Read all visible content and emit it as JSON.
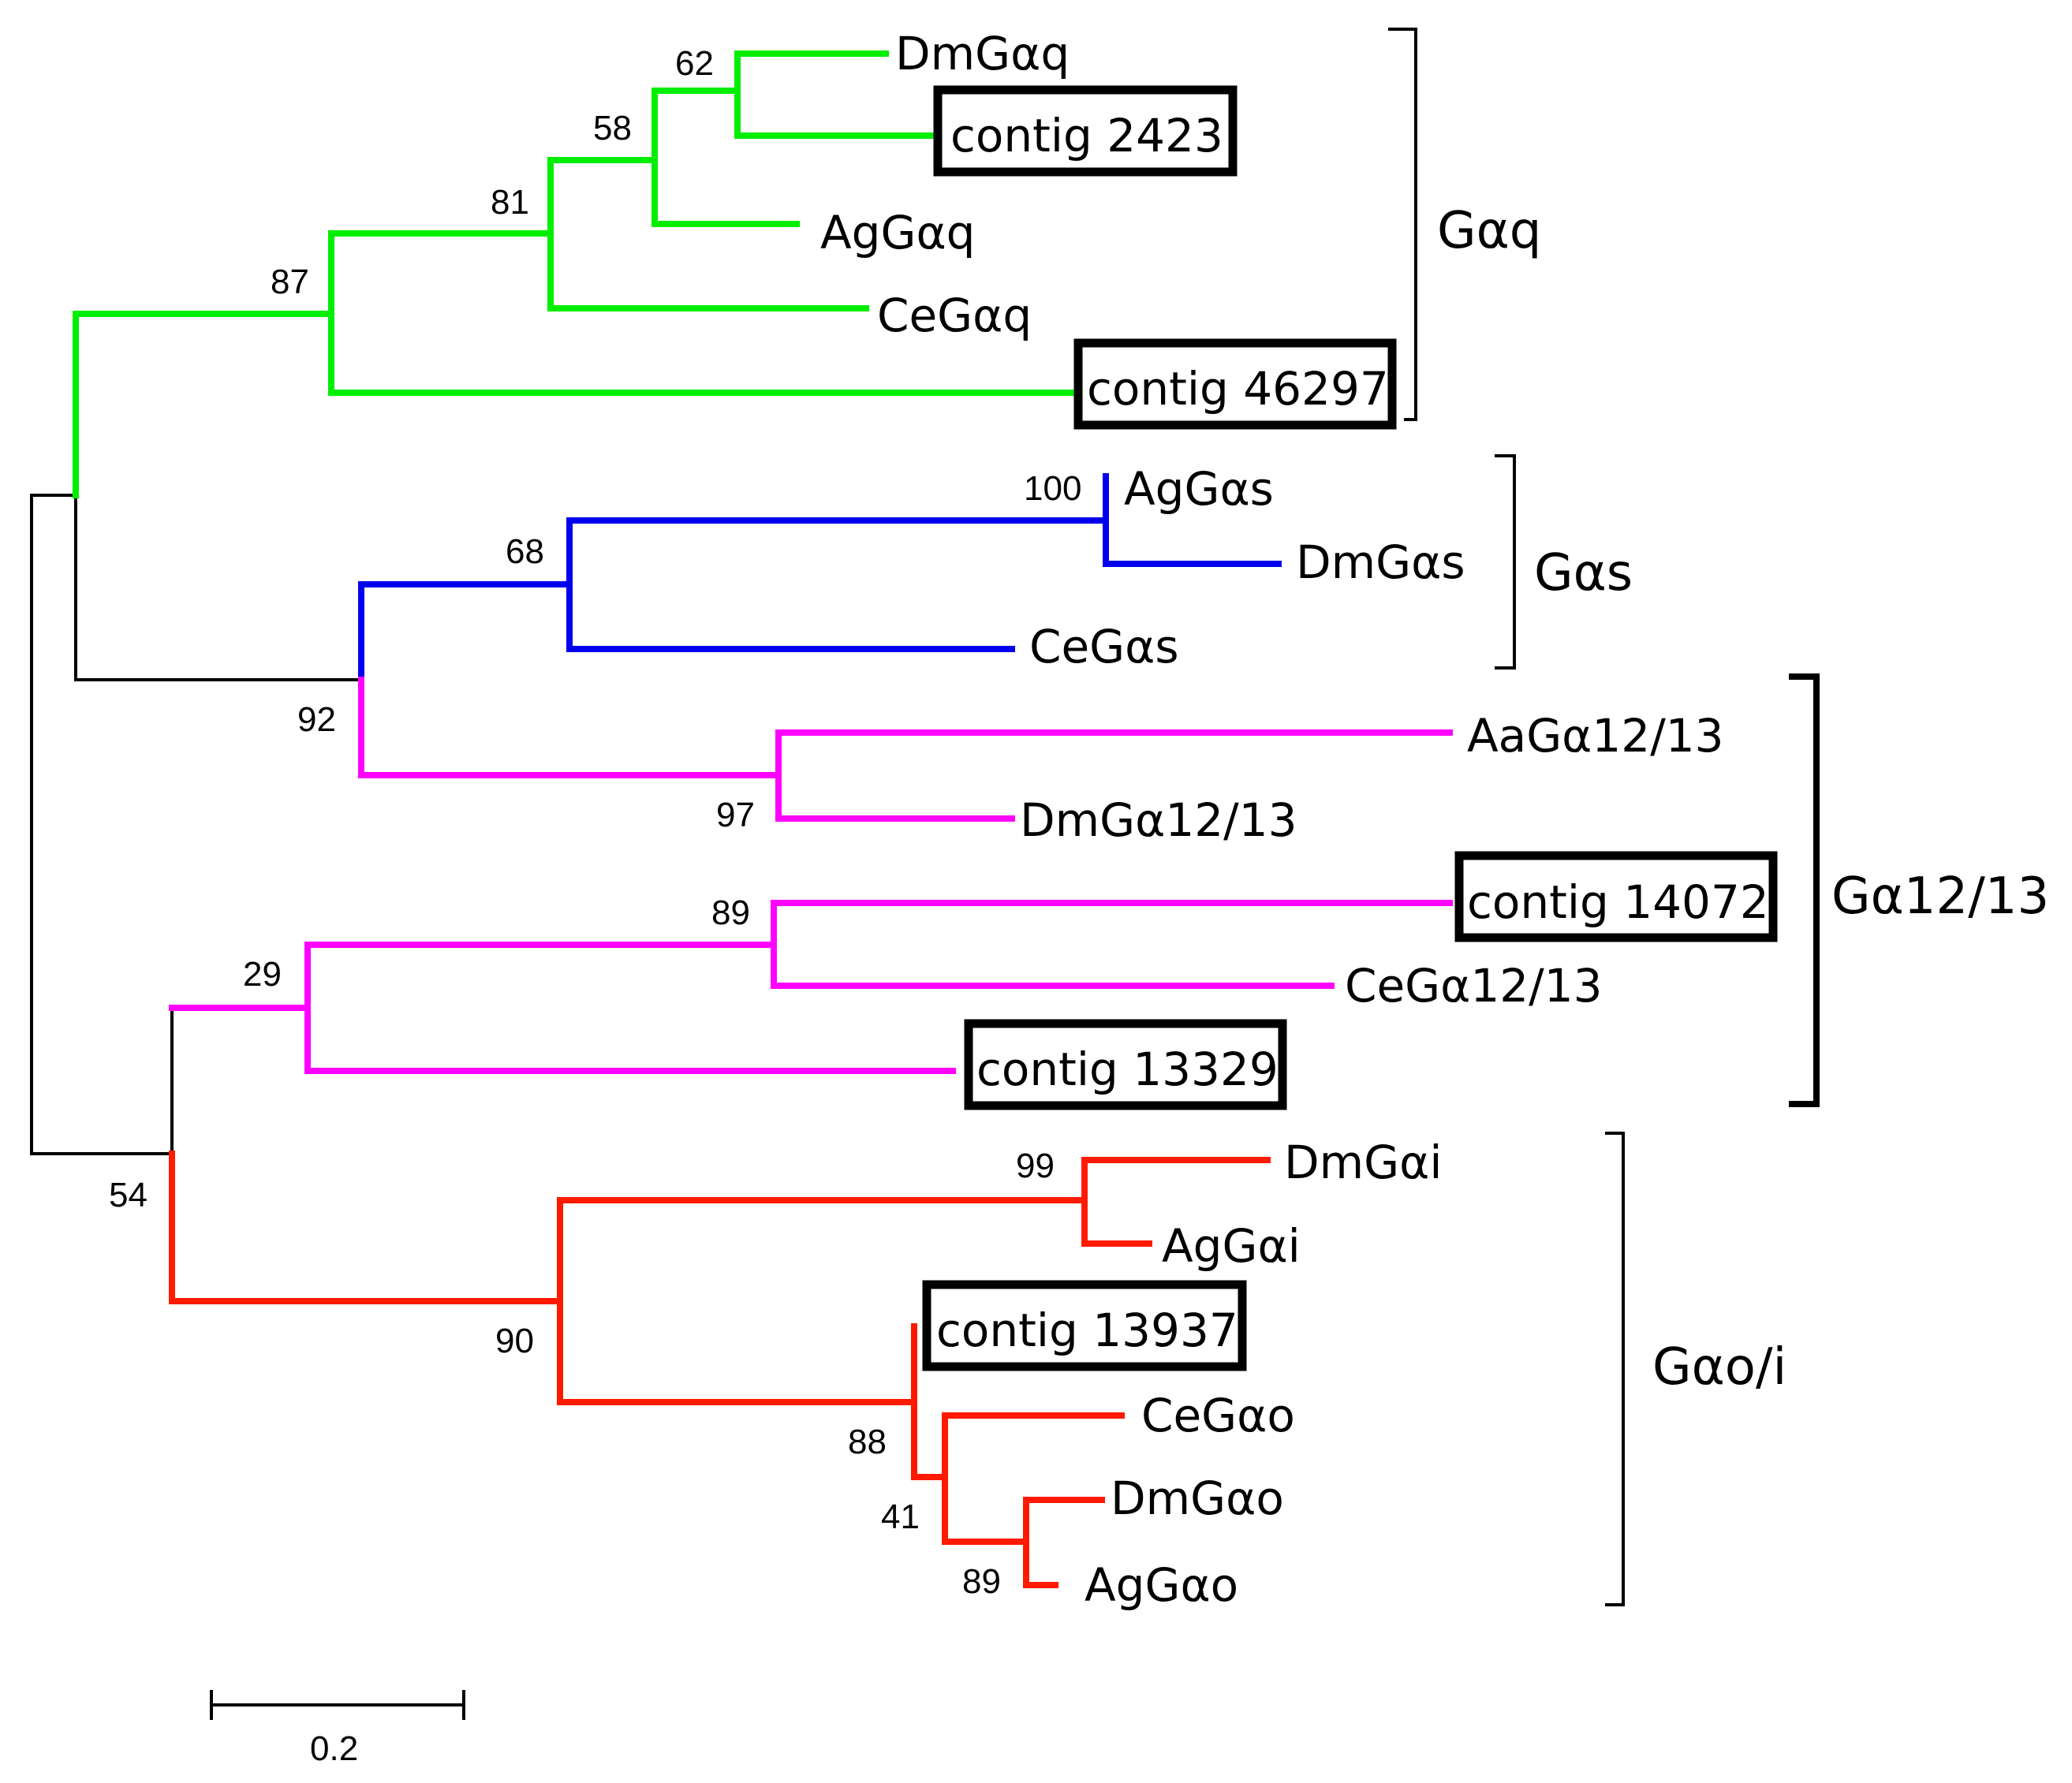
{
  "colors": {
    "root": "#000000",
    "gaq": "#00ee00",
    "gas": "#0000ee",
    "g1213": "#ff00ff",
    "goi": "#ff1a00",
    "box": "#000000"
  },
  "leaves": {
    "dm_gaq": "DmGαq",
    "contig_2423": "contig 2423",
    "ag_gaq": "AgGαq",
    "ce_gaq": "CeGαq",
    "contig_46297": "contig 46297",
    "ag_gas": "AgGαs",
    "dm_gas": "DmGαs",
    "ce_gas": "CeGαs",
    "aa_g1213": "AaGα12/13",
    "dm_g1213": "DmGα12/13",
    "contig_14072": "contig 14072",
    "ce_g1213": "CeGα12/13",
    "contig_13329": "contig 13329",
    "dm_gai": "DmGαi",
    "ag_gai": "AgGαi",
    "contig_13937": "contig 13937",
    "ce_gao": "CeGαo",
    "dm_gao": "DmGαo",
    "ag_gao": "AgGαo"
  },
  "bootstrap": {
    "gaq_62": "62",
    "gaq_58": "58",
    "gaq_81": "81",
    "gaq_87": "87",
    "gas_100": "100",
    "gas_68": "68",
    "gas_92": "92",
    "g1213_97": "97",
    "g1213_89": "89",
    "g1213_29": "29",
    "root_54": "54",
    "goi_99": "99",
    "goi_90": "90",
    "goi_88": "88",
    "goi_41": "41",
    "goi_89": "89"
  },
  "clades": {
    "gaq": "Gαq",
    "gas": "Gαs",
    "g1213": "Gα12/13",
    "goi": "Gαo/i"
  },
  "scale_bar": {
    "label": "0.2",
    "value": 0.2
  }
}
